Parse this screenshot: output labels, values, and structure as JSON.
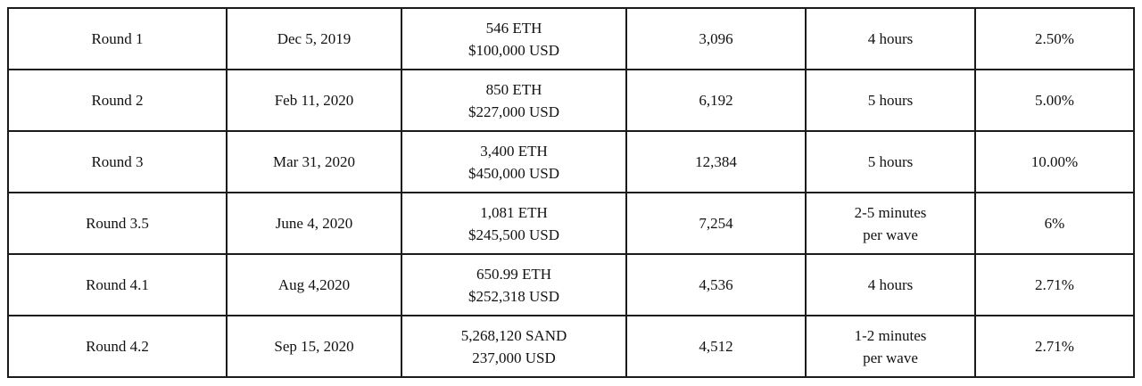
{
  "rows": [
    {
      "round": "Round 1",
      "date": "Dec 5, 2019",
      "raised_line1": "546 ETH",
      "raised_line2": "$100,000 USD",
      "lands": "3,096",
      "duration_line1": "4 hours",
      "duration_line2": "",
      "share": "2.50%"
    },
    {
      "round": "Round 2",
      "date": "Feb 11, 2020",
      "raised_line1": "850 ETH",
      "raised_line2": "$227,000 USD",
      "lands": "6,192",
      "duration_line1": "5 hours",
      "duration_line2": "",
      "share": "5.00%"
    },
    {
      "round": "Round 3",
      "date": "Mar 31, 2020",
      "raised_line1": "3,400 ETH",
      "raised_line2": "$450,000 USD",
      "lands": "12,384",
      "duration_line1": "5 hours",
      "duration_line2": "",
      "share": "10.00%"
    },
    {
      "round": "Round 3.5",
      "date": "June 4, 2020",
      "raised_line1": "1,081 ETH",
      "raised_line2": "$245,500 USD",
      "lands": "7,254",
      "duration_line1": "2-5 minutes",
      "duration_line2": "per wave",
      "share": "6%"
    },
    {
      "round": "Round 4.1",
      "date": "Aug 4,2020",
      "raised_line1": "650.99 ETH",
      "raised_line2": "$252,318 USD",
      "lands": "4,536",
      "duration_line1": "4 hours",
      "duration_line2": "",
      "share": "2.71%"
    },
    {
      "round": "Round 4.2",
      "date": "Sep 15, 2020",
      "raised_line1": "5,268,120 SAND",
      "raised_line2": "237,000 USD",
      "lands": "4,512",
      "duration_line1": "1-2 minutes",
      "duration_line2": "per wave",
      "share": "2.71%"
    }
  ]
}
